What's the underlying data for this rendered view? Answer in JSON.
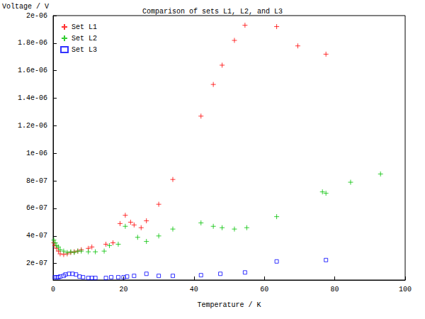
{
  "chart_data": {
    "type": "scatter",
    "title": "Comparison of sets L1, L2, and L3",
    "x_label": "Temperature / K",
    "y_label": "Voltage / V",
    "xlim": [
      0,
      100
    ],
    "xticks": [
      0,
      20,
      40,
      60,
      80,
      100
    ],
    "ylim": [
      8e-08,
      2e-06
    ],
    "yticks": [
      {
        "value": 2e-07,
        "label": "2e-07"
      },
      {
        "value": 4e-07,
        "label": "4e-07"
      },
      {
        "value": 6e-07,
        "label": "6e-07"
      },
      {
        "value": 8e-07,
        "label": "8e-07"
      },
      {
        "value": 1e-06,
        "label": "1e-06"
      },
      {
        "value": 1.2e-06,
        "label": "1.2e-06"
      },
      {
        "value": 1.4e-06,
        "label": "1.4e-06"
      },
      {
        "value": 1.6e-06,
        "label": "1.6e-06"
      },
      {
        "value": 1.8e-06,
        "label": "1.8e-06"
      },
      {
        "value": 2e-06,
        "label": "2e-06"
      }
    ],
    "grid": false,
    "legend": "top-left",
    "series": [
      {
        "name": "Set L1",
        "color": "#ff0000",
        "marker": "plus",
        "x": [
          0.2,
          0.5,
          1,
          1.5,
          2,
          3,
          4,
          5,
          6,
          7,
          8,
          10,
          11,
          15,
          17,
          19,
          20.5,
          22,
          23,
          25,
          26.5,
          30,
          34,
          42,
          45.5,
          48,
          51.5,
          54.5,
          63.5,
          69.5,
          77.5
        ],
        "values": [
          3.5e-07,
          3.3e-07,
          3.1e-07,
          2.9e-07,
          2.7e-07,
          2.65e-07,
          2.7e-07,
          2.8e-07,
          2.85e-07,
          2.9e-07,
          3e-07,
          3.1e-07,
          3.2e-07,
          3.4e-07,
          3.5e-07,
          4.9e-07,
          5.5e-07,
          5e-07,
          4.8e-07,
          4.6e-07,
          5.1e-07,
          6.3e-07,
          8.1e-07,
          1.27e-06,
          1.5e-06,
          1.64e-06,
          1.82e-06,
          1.93e-06,
          1.92e-06,
          1.78e-06,
          1.72e-06
        ]
      },
      {
        "name": "Set L2",
        "color": "#00c000",
        "marker": "plus",
        "x": [
          0.2,
          0.6,
          1,
          1.5,
          2,
          3,
          4,
          5,
          6,
          7,
          8,
          10,
          12,
          14.5,
          16,
          18.5,
          20.5,
          24,
          26.5,
          30,
          34,
          42,
          45.5,
          48,
          51.5,
          55,
          63.5,
          76.5,
          77.5,
          84.5,
          93
        ],
        "values": [
          3.7e-07,
          3.5e-07,
          3.3e-07,
          3.2e-07,
          3e-07,
          2.9e-07,
          2.8e-07,
          2.85e-07,
          2.8e-07,
          2.9e-07,
          2.9e-07,
          2.85e-07,
          2.85e-07,
          2.9e-07,
          3.3e-07,
          3.4e-07,
          4.7e-07,
          3.9e-07,
          3.6e-07,
          4e-07,
          4.5e-07,
          4.95e-07,
          4.7e-07,
          4.6e-07,
          4.5e-07,
          4.6e-07,
          5.4e-07,
          7.2e-07,
          7.1e-07,
          7.9e-07,
          8.5e-07
        ]
      },
      {
        "name": "Set L3",
        "color": "#0000ff",
        "marker": "square_open",
        "x": [
          0.5,
          1,
          1.5,
          2,
          3,
          3.5,
          4.5,
          5.5,
          6.5,
          7.5,
          8.5,
          10,
          11,
          12,
          15,
          16.5,
          18.5,
          20,
          21,
          23,
          26.5,
          30,
          34,
          42,
          47.5,
          54.5,
          63.5,
          77.5
        ],
        "values": [
          1e-07,
          1e-07,
          1e-07,
          1.05e-07,
          1.1e-07,
          1.2e-07,
          1.25e-07,
          1.25e-07,
          1.2e-07,
          1.05e-07,
          1e-07,
          9.5e-08,
          9.5e-08,
          9.5e-08,
          9.5e-08,
          1e-07,
          1e-07,
          1e-07,
          1.05e-07,
          1.1e-07,
          1.25e-07,
          1.1e-07,
          1.1e-07,
          1.15e-07,
          1.25e-07,
          1.35e-07,
          2.15e-07,
          2.25e-07
        ]
      }
    ]
  }
}
